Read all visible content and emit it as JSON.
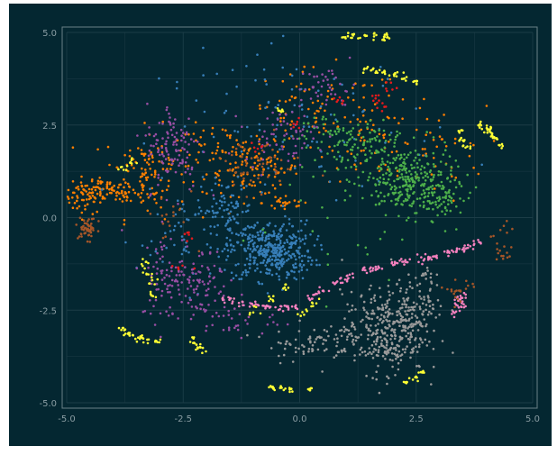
{
  "chart_data": {
    "type": "scatter",
    "title": "",
    "xlabel": "",
    "ylabel": "",
    "xlim": [
      -5.0,
      5.0
    ],
    "ylim": [
      -5.0,
      5.0
    ],
    "x_ticks": [
      -5.0,
      -2.5,
      0.0,
      2.5,
      5.0
    ],
    "y_ticks": [
      5.0,
      2.5,
      0.0,
      -2.5,
      -5.0
    ],
    "x_tick_labels": [
      "-5.0",
      "-2.5",
      "0.0",
      "2.5",
      "5.0"
    ],
    "y_tick_labels": [
      "5.0",
      "2.5",
      "0.0",
      "-2.5",
      "-5.0"
    ],
    "grid": true,
    "legend": "none",
    "colors": {
      "background": "#042731",
      "grid": "#1c3d47",
      "axis_frame": "#6a8088",
      "tick_text": "#8a9da3"
    },
    "series": [
      {
        "color": "#ff7f00",
        "clusters": [
          {
            "cx": -4.6,
            "cy": 0.6,
            "sx": 0.22,
            "sy": 0.25,
            "n": 60
          },
          {
            "cx": -4.1,
            "cy": 0.7,
            "sx": 0.3,
            "sy": 0.15,
            "n": 60
          },
          {
            "cx": -3.3,
            "cy": 1.2,
            "sx": 0.45,
            "sy": 0.6,
            "n": 120
          },
          {
            "cx": -1.0,
            "cy": 1.3,
            "sx": 0.5,
            "sy": 0.35,
            "n": 110
          },
          {
            "cx": -0.3,
            "cy": 0.4,
            "sx": 0.25,
            "sy": 0.15,
            "n": 25
          },
          {
            "cx": 0.5,
            "cy": 2.8,
            "sx": 0.9,
            "sy": 0.6,
            "n": 90
          },
          {
            "cx": 1.8,
            "cy": 2.0,
            "sx": 0.7,
            "sy": 0.5,
            "n": 50
          },
          {
            "cx": -1.8,
            "cy": 1.9,
            "sx": 0.5,
            "sy": 0.3,
            "n": 40
          },
          {
            "cx": 3.0,
            "cy": 1.8,
            "sx": 0.5,
            "sy": 0.6,
            "n": 30
          }
        ]
      },
      {
        "color": "#377eb8",
        "clusters": [
          {
            "cx": -0.6,
            "cy": -0.9,
            "sx": 0.45,
            "sy": 0.4,
            "n": 380
          },
          {
            "cx": -1.6,
            "cy": 0.2,
            "sx": 0.3,
            "sy": 0.4,
            "n": 70
          },
          {
            "cx": 0.0,
            "cy": 2.5,
            "sx": 1.5,
            "sy": 1.0,
            "n": 110
          },
          {
            "cx": -2.3,
            "cy": -0.5,
            "sx": 0.6,
            "sy": 0.7,
            "n": 60
          }
        ]
      },
      {
        "color": "#4daf4a",
        "clusters": [
          {
            "cx": 2.3,
            "cy": 1.0,
            "sx": 0.5,
            "sy": 0.45,
            "n": 260
          },
          {
            "cx": 1.2,
            "cy": 1.9,
            "sx": 0.45,
            "sy": 0.35,
            "n": 90
          },
          {
            "cx": 3.0,
            "cy": 0.55,
            "sx": 0.3,
            "sy": 0.3,
            "n": 70
          },
          {
            "cx": 0.5,
            "cy": 2.4,
            "sx": 0.25,
            "sy": 0.2,
            "n": 30
          },
          {
            "cx": 1.0,
            "cy": 0.0,
            "sx": 1.2,
            "sy": 1.0,
            "n": 30
          }
        ]
      },
      {
        "color": "#984ea3",
        "clusters": [
          {
            "cx": -2.7,
            "cy": 1.9,
            "sx": 0.3,
            "sy": 0.6,
            "n": 110
          },
          {
            "cx": -2.8,
            "cy": -1.6,
            "sx": 0.3,
            "sy": 0.6,
            "n": 90
          },
          {
            "cx": -2.1,
            "cy": -1.7,
            "sx": 0.3,
            "sy": 0.5,
            "n": 60
          },
          {
            "cx": -0.4,
            "cy": 2.2,
            "sx": 0.4,
            "sy": 0.35,
            "n": 60
          },
          {
            "cx": 0.6,
            "cy": 3.5,
            "sx": 0.3,
            "sy": 0.3,
            "n": 40
          },
          {
            "cx": -1.5,
            "cy": -2.7,
            "sx": 0.5,
            "sy": 0.3,
            "n": 40
          }
        ]
      },
      {
        "color": "#999999",
        "clusters": [
          {
            "cx": 1.8,
            "cy": -3.1,
            "sx": 0.45,
            "sy": 0.55,
            "n": 330
          },
          {
            "cx": 2.5,
            "cy": -2.4,
            "sx": 0.3,
            "sy": 0.4,
            "n": 90
          },
          {
            "cx": 0.2,
            "cy": -3.4,
            "sx": 0.45,
            "sy": 0.25,
            "n": 70
          },
          {
            "cx": 2.7,
            "cy": -1.8,
            "sx": 0.1,
            "sy": 0.3,
            "n": 20
          }
        ]
      },
      {
        "color": "#f781bf",
        "points": [
          [
            -1.6,
            -2.2
          ],
          [
            -1.3,
            -2.3
          ],
          [
            -1.0,
            -2.35
          ],
          [
            -0.7,
            -2.4
          ],
          [
            -0.4,
            -2.45
          ],
          [
            -0.1,
            -2.4
          ],
          [
            0.2,
            -2.2
          ],
          [
            0.5,
            -1.95
          ],
          [
            0.8,
            -1.75
          ],
          [
            1.1,
            -1.6
          ],
          [
            1.4,
            -1.45
          ],
          [
            1.7,
            -1.35
          ],
          [
            2.0,
            -1.25
          ],
          [
            2.3,
            -1.15
          ],
          [
            2.6,
            -1.1
          ],
          [
            2.9,
            -1.05
          ],
          [
            3.2,
            -0.95
          ],
          [
            3.5,
            -0.85
          ],
          [
            3.8,
            -0.7
          ],
          [
            -1.45,
            -2.25
          ],
          [
            -0.85,
            -2.38
          ],
          [
            -0.25,
            -2.43
          ],
          [
            0.35,
            -2.08
          ],
          [
            0.95,
            -1.68
          ],
          [
            1.55,
            -1.4
          ],
          [
            2.15,
            -1.2
          ],
          [
            2.75,
            -1.08
          ],
          [
            3.35,
            -0.9
          ],
          [
            3.65,
            -0.78
          ],
          [
            3.4,
            -2.2
          ],
          [
            3.5,
            -2.4
          ],
          [
            3.3,
            -2.55
          ],
          [
            3.45,
            -2.3
          ],
          [
            3.55,
            -2.1
          ]
        ],
        "jitter": 0.05
      },
      {
        "color": "#ffff33",
        "points": [
          [
            1.0,
            4.85
          ],
          [
            1.2,
            4.9
          ],
          [
            1.4,
            4.9
          ],
          [
            1.6,
            4.88
          ],
          [
            1.8,
            4.85
          ],
          [
            1.9,
            4.85
          ],
          [
            1.45,
            4.0
          ],
          [
            1.65,
            3.95
          ],
          [
            1.85,
            3.9
          ],
          [
            2.05,
            3.85
          ],
          [
            2.25,
            3.75
          ],
          [
            2.45,
            3.65
          ],
          [
            3.9,
            2.5
          ],
          [
            4.0,
            2.35
          ],
          [
            4.1,
            2.25
          ],
          [
            4.2,
            2.1
          ],
          [
            4.3,
            1.95
          ],
          [
            4.05,
            2.4
          ],
          [
            3.45,
            2.3
          ],
          [
            3.5,
            2.1
          ],
          [
            3.55,
            1.9
          ],
          [
            -3.8,
            -3.0
          ],
          [
            -3.6,
            -3.2
          ],
          [
            -3.3,
            -3.3
          ],
          [
            -3.05,
            -3.35
          ],
          [
            -3.7,
            -3.1
          ],
          [
            -3.45,
            -3.28
          ],
          [
            -2.3,
            -3.3
          ],
          [
            -2.2,
            -3.5
          ],
          [
            -2.1,
            -3.55
          ],
          [
            -0.6,
            -4.55
          ],
          [
            -0.4,
            -4.6
          ],
          [
            -0.2,
            -4.62
          ],
          [
            0.2,
            -4.6
          ],
          [
            2.3,
            -4.4
          ],
          [
            2.5,
            -4.3
          ],
          [
            2.65,
            -4.2
          ],
          [
            -3.2,
            -1.7
          ],
          [
            -3.3,
            -1.5
          ],
          [
            -3.35,
            -1.2
          ],
          [
            -3.2,
            -2.1
          ],
          [
            -1.0,
            -2.5
          ],
          [
            -0.6,
            -2.2
          ],
          [
            -0.3,
            -1.9
          ],
          [
            0.3,
            -2.3
          ],
          [
            0.1,
            -2.6
          ],
          [
            -3.8,
            1.3
          ],
          [
            -3.6,
            1.5
          ],
          [
            -0.4,
            2.9
          ]
        ],
        "jitter": 0.05
      },
      {
        "color": "#a65628",
        "clusters": [
          {
            "cx": -4.55,
            "cy": -0.3,
            "sx": 0.1,
            "sy": 0.15,
            "n": 50
          },
          {
            "cx": -1.0,
            "cy": 1.4,
            "sx": 0.55,
            "sy": 0.35,
            "n": 50
          },
          {
            "cx": 4.35,
            "cy": -0.8,
            "sx": 0.12,
            "sy": 0.35,
            "n": 20
          },
          {
            "cx": 3.4,
            "cy": -2.0,
            "sx": 0.15,
            "sy": 0.25,
            "n": 20
          },
          {
            "cx": -2.8,
            "cy": 0.0,
            "sx": 0.25,
            "sy": 0.3,
            "n": 15
          }
        ]
      },
      {
        "color": "#e41a1c",
        "points": [
          [
            -2.4,
            -0.5
          ],
          [
            -0.9,
            1.9
          ],
          [
            -0.1,
            2.5
          ],
          [
            0.8,
            3.1
          ],
          [
            1.6,
            3.25
          ],
          [
            1.75,
            3.0
          ],
          [
            2.0,
            3.5
          ],
          [
            -2.6,
            -1.3
          ]
        ],
        "jitter": 0.08
      }
    ]
  }
}
